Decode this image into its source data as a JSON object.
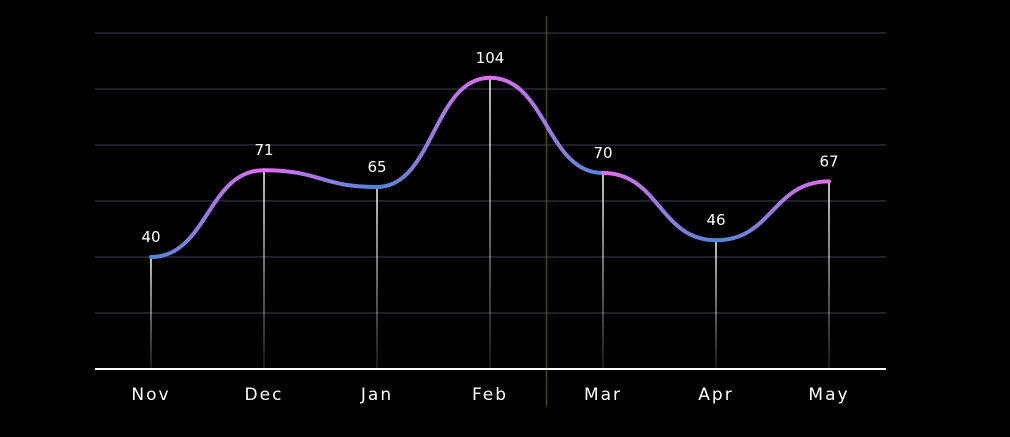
{
  "chart_data": {
    "type": "line",
    "categories": [
      "Nov",
      "Dec",
      "Jan",
      "Feb",
      "Mar",
      "Apr",
      "May"
    ],
    "values": [
      40,
      71,
      65,
      104,
      70,
      46,
      67
    ],
    "title": "",
    "xlabel": "",
    "ylabel": "",
    "ylim": [
      0,
      120
    ],
    "grid": true,
    "curve": "smooth",
    "data_labels": true,
    "drop_lines": true,
    "marker_line_between": [
      "Feb",
      "Mar"
    ],
    "colors": {
      "background": "#000000",
      "grid": "#2a2a3a",
      "axis": "#ffffff",
      "text": "#ffffff",
      "line_pink": "#e46df0",
      "line_blue": "#4f86d4",
      "marker_line": "#4a4a10",
      "drop_line": "#ffffff"
    }
  }
}
